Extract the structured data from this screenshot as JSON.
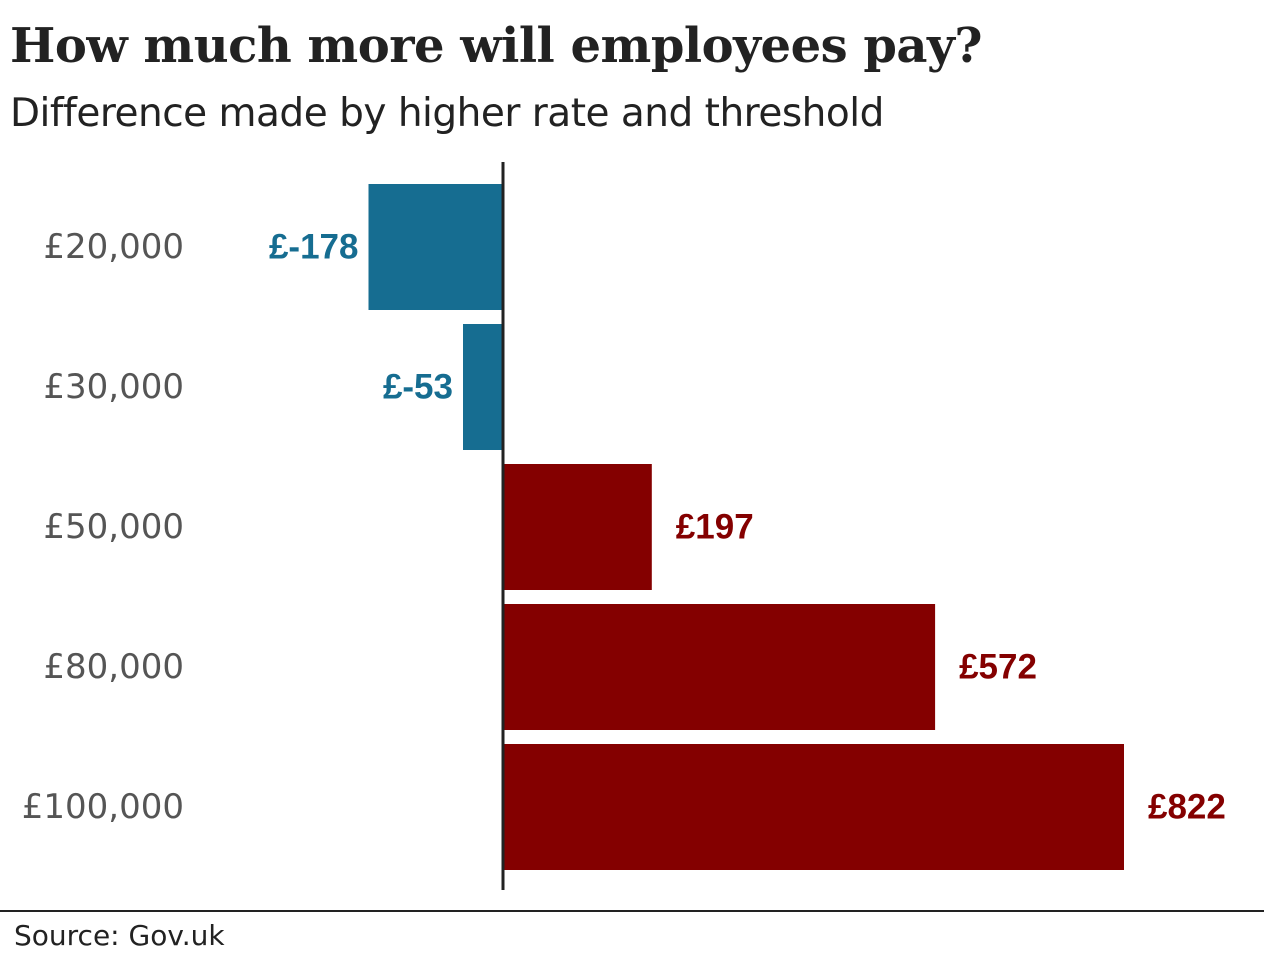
{
  "title": "How much more will employees pay?",
  "subtitle": "Difference made by higher rate and threshold",
  "source": "Source: Gov.uk",
  "colors": {
    "negative": "#166d91",
    "positive": "#840000",
    "axis": "#222222",
    "category_text": "#555555"
  },
  "chart_data": {
    "type": "bar",
    "orientation": "horizontal",
    "categories": [
      "£20,000",
      "£30,000",
      "£50,000",
      "£80,000",
      "£100,000"
    ],
    "values": [
      -178,
      -53,
      197,
      572,
      822
    ],
    "data_labels": [
      "£-178",
      "£-53",
      "£197",
      "£572",
      "£822"
    ],
    "title": "How much more will employees pay?",
    "subtitle": "Difference made by higher rate and threshold",
    "xlabel": "",
    "ylabel": "",
    "grid": false,
    "legend": "none"
  }
}
